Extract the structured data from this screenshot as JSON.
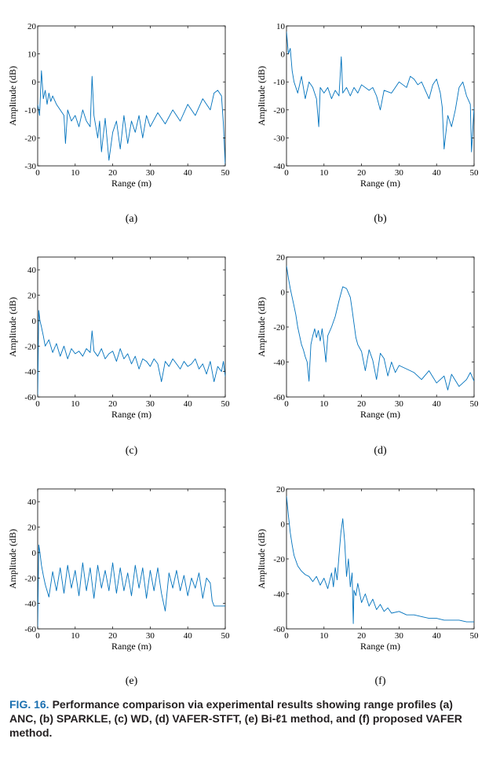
{
  "chart_data": [
    {
      "id": "a",
      "panel_label": "(a)",
      "type": "line",
      "method": "ANC",
      "xlabel": "Range (m)",
      "ylabel": "Amplitude (dB)",
      "xlim": [
        0,
        50
      ],
      "ylim": [
        -30,
        20
      ],
      "xticks": [
        0,
        10,
        20,
        30,
        40,
        50
      ],
      "yticks": [
        -30,
        -20,
        -10,
        0,
        10,
        20
      ],
      "series": [
        {
          "name": "ANC",
          "color": "#0072bd",
          "x": [
            0,
            0.5,
            1,
            1.5,
            2,
            2.5,
            3,
            3.5,
            4,
            5,
            6,
            7,
            7.4,
            8,
            9,
            10,
            11,
            12,
            13,
            14,
            14.5,
            15,
            16,
            16.5,
            17,
            18,
            19,
            20,
            21,
            22,
            23,
            24,
            25,
            26,
            27,
            28,
            29,
            30,
            32,
            34,
            36,
            38,
            40,
            42,
            44,
            46,
            47,
            48,
            49,
            49.5,
            50
          ],
          "values": [
            -8,
            -12,
            4,
            -6,
            -3,
            -8,
            -4,
            -7,
            -5,
            -8,
            -10,
            -12,
            -22,
            -10,
            -14,
            -12,
            -16,
            -10,
            -14,
            -16,
            2,
            -12,
            -20,
            -14,
            -25,
            -13,
            -28,
            -18,
            -14,
            -24,
            -12,
            -22,
            -14,
            -18,
            -12,
            -20,
            -12,
            -16,
            -11,
            -15,
            -10,
            -14,
            -8,
            -12,
            -6,
            -10,
            -4,
            -3,
            -5,
            -15,
            -30
          ]
        }
      ]
    },
    {
      "id": "b",
      "panel_label": "(b)",
      "type": "line",
      "method": "SPARKLE",
      "xlabel": "Range (m)",
      "ylabel": "Amplitude (dB)",
      "xlim": [
        0,
        50
      ],
      "ylim": [
        -40,
        10
      ],
      "xticks": [
        0,
        10,
        20,
        30,
        40,
        50
      ],
      "yticks": [
        -40,
        -30,
        -20,
        -10,
        0,
        10
      ],
      "series": [
        {
          "name": "SPARKLE",
          "color": "#0072bd",
          "x": [
            0,
            0.5,
            1,
            1.5,
            2,
            3,
            4,
            5,
            6,
            7,
            8,
            8.6,
            9,
            10,
            11,
            12,
            13,
            14,
            14.6,
            15,
            16,
            17,
            18,
            19,
            20,
            22,
            23,
            24,
            25,
            26,
            28,
            30,
            32,
            33,
            34,
            35,
            36,
            38,
            39,
            40,
            41,
            41.5,
            42,
            43,
            44,
            45,
            46,
            47,
            48,
            49,
            49.3,
            50
          ],
          "values": [
            8,
            0,
            2,
            -6,
            -10,
            -14,
            -8,
            -16,
            -10,
            -12,
            -16,
            -26,
            -12,
            -14,
            -12,
            -16,
            -13,
            -15,
            -1,
            -14,
            -12,
            -15,
            -12,
            -14,
            -11,
            -13,
            -12,
            -15,
            -20,
            -13,
            -14,
            -10,
            -12,
            -8,
            -9,
            -11,
            -10,
            -16,
            -11,
            -9,
            -14,
            -19,
            -34,
            -22,
            -26,
            -20,
            -12,
            -10,
            -15,
            -18,
            -35,
            -19
          ]
        }
      ]
    },
    {
      "id": "c",
      "panel_label": "(c)",
      "type": "line",
      "method": "WD",
      "xlabel": "Range (m)",
      "ylabel": "Amplitude (dB)",
      "xlim": [
        0,
        50
      ],
      "ylim": [
        -60,
        50
      ],
      "xticks": [
        0,
        10,
        20,
        30,
        40,
        50
      ],
      "yticks": [
        -60,
        -40,
        -20,
        0,
        20,
        40
      ],
      "series": [
        {
          "name": "WD",
          "color": "#0072bd",
          "x": [
            0,
            0.3,
            0.6,
            1,
            1.5,
            2,
            3,
            4,
            5,
            6,
            7,
            8,
            9,
            10,
            11,
            12,
            13,
            14,
            14.5,
            15,
            16,
            17,
            18,
            19,
            20,
            21,
            22,
            23,
            24,
            25,
            26,
            27,
            28,
            29,
            30,
            31,
            32,
            33,
            34,
            35,
            36,
            37,
            38,
            39,
            40,
            41,
            42,
            43,
            44,
            45,
            46,
            47,
            48,
            49,
            49.5,
            50
          ],
          "values": [
            -60,
            8,
            0,
            -5,
            -12,
            -20,
            -15,
            -25,
            -18,
            -28,
            -20,
            -30,
            -22,
            -26,
            -24,
            -28,
            -22,
            -25,
            -8,
            -24,
            -28,
            -22,
            -30,
            -26,
            -24,
            -32,
            -22,
            -30,
            -26,
            -34,
            -28,
            -38,
            -30,
            -32,
            -36,
            -30,
            -34,
            -48,
            -32,
            -36,
            -30,
            -34,
            -38,
            -32,
            -36,
            -34,
            -30,
            -38,
            -34,
            -42,
            -32,
            -48,
            -36,
            -40,
            -32,
            -44
          ]
        }
      ]
    },
    {
      "id": "d",
      "panel_label": "(d)",
      "type": "line",
      "method": "VAFER-STFT",
      "xlabel": "Range (m)",
      "ylabel": "Amplitude (dB)",
      "xlim": [
        0,
        50
      ],
      "ylim": [
        -60,
        20
      ],
      "xticks": [
        0,
        10,
        20,
        30,
        40,
        50
      ],
      "yticks": [
        -60,
        -40,
        -20,
        0,
        20
      ],
      "series": [
        {
          "name": "VAFER-STFT",
          "color": "#0072bd",
          "x": [
            0,
            0.5,
            1,
            1.5,
            2,
            2.5,
            3,
            3.5,
            4,
            4.5,
            5,
            5.5,
            6,
            6.5,
            7,
            7.5,
            8,
            8.5,
            9,
            9.5,
            10,
            10.5,
            11,
            12,
            13,
            14,
            15,
            16,
            17,
            17.5,
            18,
            18.5,
            19,
            20,
            21,
            22,
            23,
            24,
            25,
            26,
            27,
            28,
            29,
            30,
            32,
            34,
            36,
            38,
            40,
            42,
            43,
            44,
            46,
            48,
            49,
            50
          ],
          "values": [
            15,
            8,
            2,
            -3,
            -8,
            -13,
            -20,
            -25,
            -30,
            -33,
            -37,
            -40,
            -51,
            -30,
            -25,
            -21,
            -26,
            -22,
            -28,
            -21,
            -30,
            -40,
            -25,
            -20,
            -14,
            -5,
            3,
            2,
            -3,
            -10,
            -18,
            -26,
            -30,
            -34,
            -45,
            -33,
            -39,
            -50,
            -35,
            -38,
            -48,
            -40,
            -46,
            -42,
            -44,
            -46,
            -50,
            -45,
            -52,
            -48,
            -56,
            -47,
            -54,
            -50,
            -46,
            -51
          ]
        }
      ]
    },
    {
      "id": "e",
      "panel_label": "(e)",
      "type": "line",
      "method": "Bi-ℓ1 method",
      "xlabel": "Range (m)",
      "ylabel": "Amplitude (dB)",
      "xlim": [
        0,
        50
      ],
      "ylim": [
        -60,
        50
      ],
      "xticks": [
        0,
        10,
        20,
        30,
        40,
        50
      ],
      "yticks": [
        -60,
        -40,
        -20,
        0,
        20,
        40
      ],
      "series": [
        {
          "name": "Bi-ℓ1 method",
          "color": "#0072bd",
          "x": [
            0,
            0.3,
            0.6,
            1,
            1.5,
            2,
            3,
            4,
            5,
            6,
            7,
            8,
            9,
            10,
            11,
            12,
            13,
            14,
            15,
            16,
            17,
            18,
            19,
            20,
            21,
            22,
            23,
            24,
            25,
            26,
            27,
            28,
            29,
            30,
            31,
            32,
            33,
            34,
            35,
            36,
            37,
            38,
            39,
            40,
            41,
            42,
            43,
            44,
            45,
            46,
            46.5,
            47,
            48,
            49,
            50
          ],
          "values": [
            -60,
            6,
            0,
            -10,
            -18,
            -25,
            -35,
            -15,
            -30,
            -12,
            -32,
            -10,
            -28,
            -14,
            -34,
            -8,
            -30,
            -12,
            -36,
            -10,
            -28,
            -14,
            -30,
            -8,
            -32,
            -12,
            -30,
            -16,
            -34,
            -10,
            -28,
            -12,
            -36,
            -14,
            -30,
            -12,
            -32,
            -46,
            -16,
            -28,
            -14,
            -30,
            -18,
            -34,
            -20,
            -28,
            -16,
            -36,
            -20,
            -24,
            -38,
            -42,
            -42,
            -42,
            -42
          ]
        }
      ]
    },
    {
      "id": "f",
      "panel_label": "(f)",
      "type": "line",
      "method": "proposed VAFER method",
      "xlabel": "Range (m)",
      "ylabel": "Amplitude (dB)",
      "xlim": [
        0,
        50
      ],
      "ylim": [
        -60,
        20
      ],
      "xticks": [
        0,
        10,
        20,
        30,
        40,
        50
      ],
      "yticks": [
        -60,
        -40,
        -20,
        0,
        20
      ],
      "series": [
        {
          "name": "proposed VAFER method",
          "color": "#0072bd",
          "x": [
            0,
            0.5,
            1,
            1.5,
            2,
            3,
            4,
            5,
            6,
            7,
            8,
            9,
            10,
            11,
            12,
            12.5,
            13,
            13.5,
            14,
            14.5,
            15,
            15.5,
            16,
            16.5,
            17,
            17.5,
            17.8,
            18,
            18.5,
            19,
            20,
            21,
            22,
            23,
            24,
            25,
            26,
            27,
            28,
            30,
            32,
            34,
            36,
            38,
            40,
            42,
            44,
            46,
            48,
            50
          ],
          "values": [
            16,
            5,
            -5,
            -12,
            -18,
            -24,
            -27,
            -29,
            -30,
            -33,
            -30,
            -35,
            -31,
            -37,
            -28,
            -36,
            -25,
            -32,
            -18,
            -5,
            3,
            -10,
            -30,
            -20,
            -36,
            -28,
            -57,
            -38,
            -41,
            -34,
            -45,
            -40,
            -47,
            -43,
            -49,
            -46,
            -50,
            -48,
            -51,
            -50,
            -52,
            -52,
            -53,
            -54,
            -54,
            -55,
            -55,
            -55,
            -56,
            -56
          ]
        }
      ]
    }
  ],
  "caption": {
    "figure_number": "FIG. 16.",
    "text": "Performance comparison via experimental results showing range profiles (a) ANC, (b) SPARKLE, (c) WD, (d) VAFER-STFT, (e) Bi-ℓ1 method, and (f) proposed VAFER method."
  }
}
